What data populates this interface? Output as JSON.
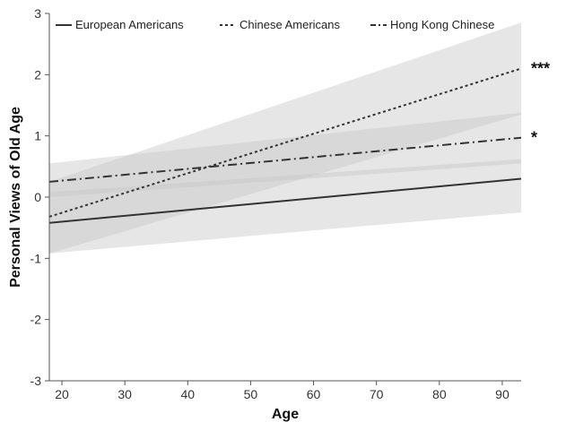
{
  "chart_data": {
    "type": "line",
    "title": "",
    "xlabel": "Age",
    "ylabel": "Personal Views of Old Age",
    "xlim": [
      18,
      93
    ],
    "ylim": [
      -3,
      3
    ],
    "xticks": [
      20,
      30,
      40,
      50,
      60,
      70,
      80,
      90
    ],
    "yticks": [
      -3,
      -2,
      -1,
      0,
      1,
      2,
      3
    ],
    "grid": false,
    "legend": {
      "placement": "top",
      "orientation": "horizontal"
    },
    "series": [
      {
        "name": "European Americans",
        "style": "solid",
        "color": "#333333",
        "x": [
          18,
          93
        ],
        "y": [
          -0.42,
          0.3
        ],
        "ci_lower": [
          -0.92,
          -0.25
        ],
        "ci_upper": [
          0.08,
          0.62
        ],
        "significance": ""
      },
      {
        "name": "Chinese Americans",
        "style": "dotted",
        "color": "#333333",
        "x": [
          18,
          93
        ],
        "y": [
          -0.32,
          2.1
        ],
        "ci_lower": [
          -0.92,
          1.35
        ],
        "ci_upper": [
          0.25,
          2.85
        ],
        "significance": "***"
      },
      {
        "name": "Hong Kong Chinese",
        "style": "dashdot",
        "color": "#333333",
        "x": [
          18,
          93
        ],
        "y": [
          0.25,
          0.97
        ],
        "ci_lower": [
          0.0,
          0.55
        ],
        "ci_upper": [
          0.55,
          1.38
        ],
        "significance": "*"
      }
    ]
  },
  "colors": {
    "band": "#c8c8c8",
    "axis": "#555555"
  }
}
